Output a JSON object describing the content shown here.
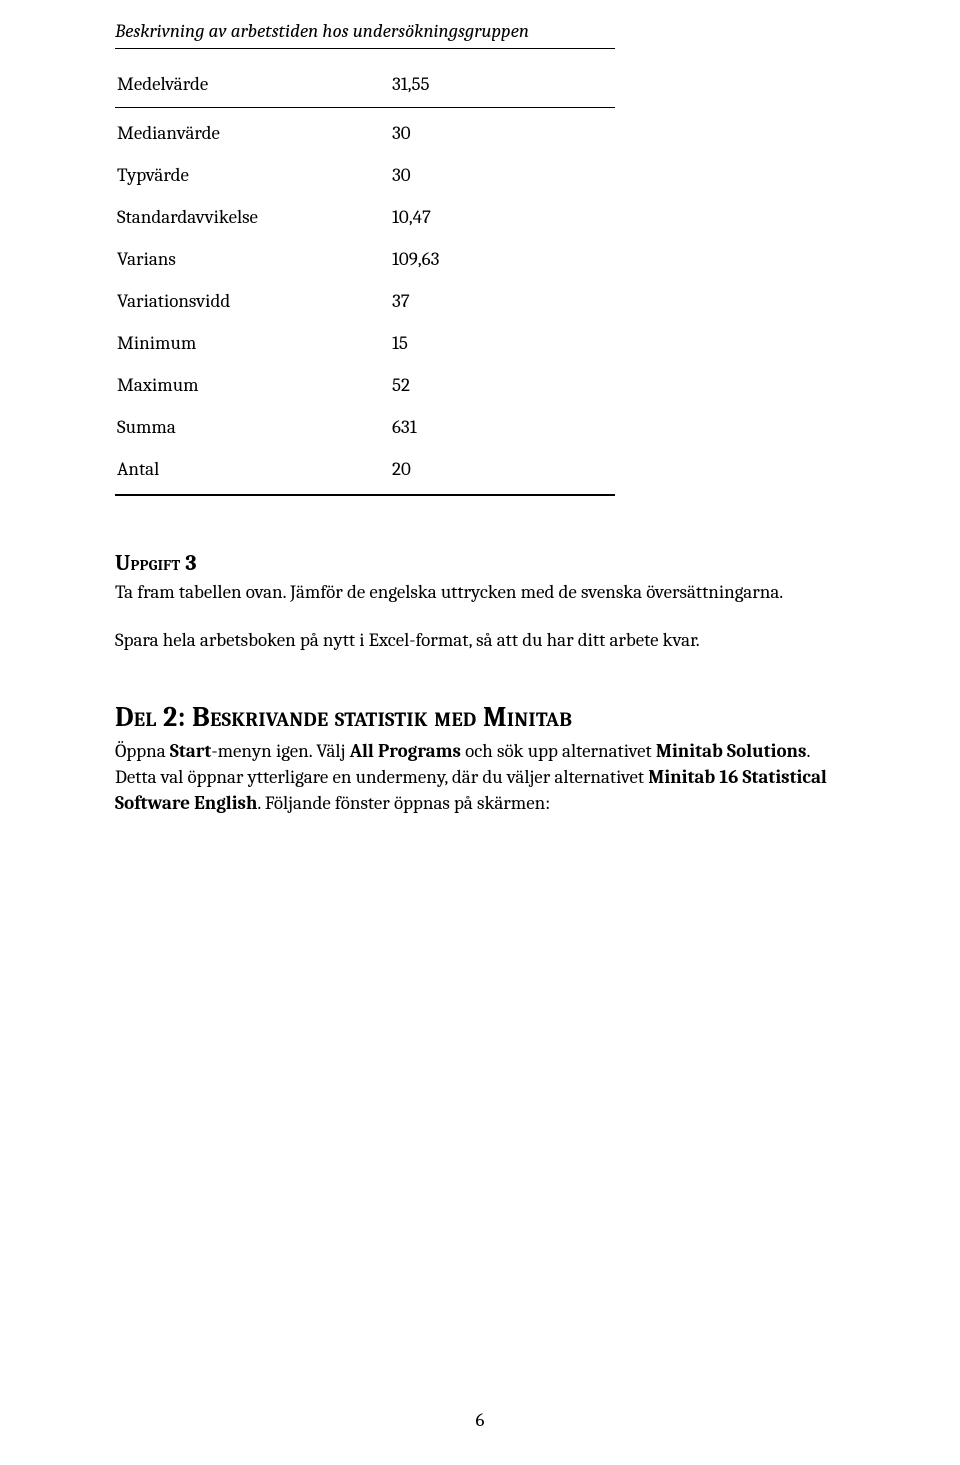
{
  "table": {
    "title": "Beskrivning av arbetstiden hos undersökningsgruppen",
    "rows": [
      {
        "label": "Medelvärde",
        "value": "31,55"
      },
      {
        "label": "Medianvärde",
        "value": "30"
      },
      {
        "label": "Typvärde",
        "value": "30"
      },
      {
        "label": "Standardavvikelse",
        "value": "10,47"
      },
      {
        "label": "Varians",
        "value": "109,63"
      },
      {
        "label": "Variationsvidd",
        "value": "37"
      },
      {
        "label": "Minimum",
        "value": "15"
      },
      {
        "label": "Maximum",
        "value": "52"
      },
      {
        "label": "Summa",
        "value": "631"
      },
      {
        "label": "Antal",
        "value": "20"
      }
    ]
  },
  "uppgift": {
    "heading": "Uppgift 3",
    "p1": "Ta fram tabellen ovan. Jämför de engelska uttrycken med de svenska översättningarna.",
    "p2": "Spara hela arbetsboken på nytt i Excel-format, så att du har ditt arbete kvar."
  },
  "section": {
    "heading": "Del 2: Beskrivande statistik med Minitab",
    "p_parts": {
      "t1": "Öppna ",
      "b1": "Start",
      "t2": "-menyn igen. Välj ",
      "b2": "All Programs",
      "t3": " och sök upp alternativet ",
      "b3": "Minitab Solutions",
      "t4": ". Detta val öppnar ytterligare en undermeny, där du väljer alternativet ",
      "b4": "Minitab 16 Statistical Software English",
      "t5": ". Följande fönster öppnas på skärmen:"
    }
  },
  "pagenum": "6"
}
